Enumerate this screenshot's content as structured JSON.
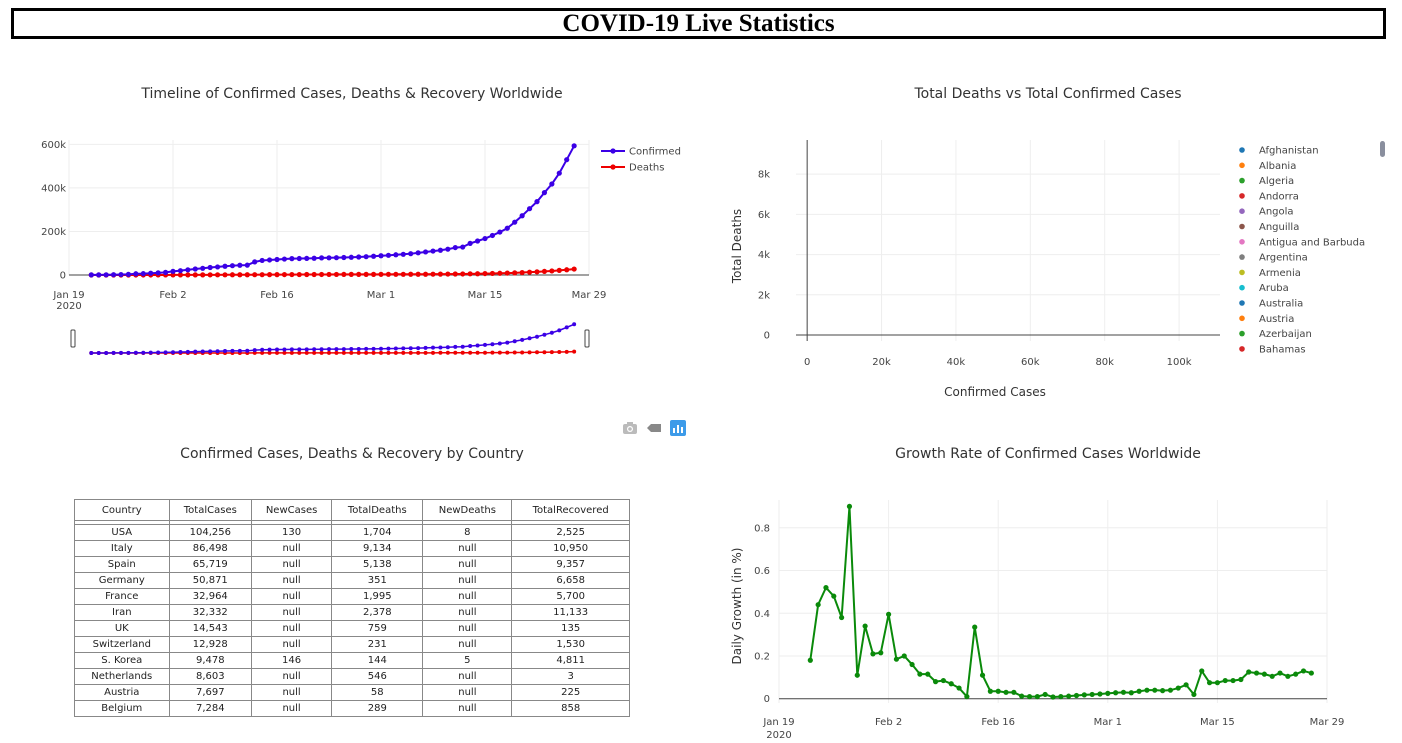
{
  "header": {
    "title": "COVID-19 Live Statistics"
  },
  "timeline": {
    "title": "Timeline of Confirmed Cases, Deaths & Recovery Worldwide",
    "x_ticks": [
      "Jan 19",
      "Feb 2",
      "Feb 16",
      "Mar 1",
      "Mar 15",
      "Mar 29"
    ],
    "x_year": "2020",
    "y_ticks": [
      "0",
      "200k",
      "400k",
      "600k"
    ],
    "legend": [
      "Confirmed",
      "Deaths"
    ]
  },
  "scatter": {
    "title": "Total Deaths vs Total Confirmed Cases",
    "x_ticks": [
      "0",
      "20k",
      "40k",
      "60k",
      "80k",
      "100k"
    ],
    "y_ticks": [
      "0",
      "2k",
      "4k",
      "6k",
      "8k"
    ],
    "xlabel": "Confirmed Cases",
    "ylabel": "Total Deaths"
  },
  "table_section": {
    "title": "Confirmed Cases, Deaths & Recovery by Country"
  },
  "growth": {
    "title": "Growth Rate of Confirmed Cases Worldwide",
    "x_ticks": [
      "Jan 19",
      "Feb 2",
      "Feb 16",
      "Mar 1",
      "Mar 15",
      "Mar 29"
    ],
    "x_year": "2020",
    "y_ticks": [
      "0",
      "0.2",
      "0.4",
      "0.6",
      "0.8"
    ],
    "ylabel": "Daily Growth (in %)"
  },
  "colors": {
    "confirmed": "#3b00e6",
    "deaths": "#ee0000",
    "growth": "#0a8a0a"
  },
  "chart_data": [
    {
      "type": "line",
      "title": "Timeline of Confirmed Cases, Deaths & Recovery Worldwide",
      "x_start": "2020-01-22",
      "x_end": "2020-03-28",
      "ylim": [
        0,
        620000
      ],
      "legend_position": "top-right",
      "grid": true,
      "series": [
        {
          "name": "Confirmed",
          "values": [
            555,
            654,
            941,
            1434,
            2118,
            2927,
            5578,
            6166,
            8234,
            9927,
            12038,
            16787,
            19881,
            23892,
            27635,
            30794,
            34391,
            37120,
            40150,
            42762,
            44802,
            45221,
            60368,
            66885,
            69030,
            71224,
            73258,
            75136,
            75639,
            76197,
            76819,
            78572,
            78958,
            79561,
            80406,
            81388,
            82746,
            84112,
            86011,
            88369,
            90306,
            92840,
            95120,
            97886,
            101801,
            105847,
            109821,
            113590,
            118620,
            125875,
            128352,
            145205,
            156101,
            167454,
            181574,
            197102,
            214821,
            242570,
            272208,
            304507,
            336953,
            378235,
            418045,
            467653,
            529591,
            593291
          ]
        },
        {
          "name": "Deaths",
          "values": [
            17,
            18,
            26,
            42,
            56,
            82,
            131,
            133,
            171,
            213,
            259,
            362,
            426,
            492,
            564,
            634,
            719,
            806,
            906,
            1013,
            1113,
            1118,
            1371,
            1523,
            1666,
            1770,
            1868,
            2007,
            2122,
            2247,
            2251,
            2458,
            2469,
            2629,
            2708,
            2770,
            2814,
            2872,
            2941,
            2996,
            3085,
            3160,
            3254,
            3348,
            3460,
            3558,
            3802,
            3988,
            4262,
            4615,
            4720,
            5404,
            5819,
            6440,
            7126,
            7905,
            8733,
            9867,
            11299,
            13017,
            14601,
            16497,
            18625,
            21181,
            23970,
            27198
          ]
        }
      ]
    },
    {
      "type": "scatter",
      "title": "Total Deaths vs Total Confirmed Cases",
      "xlabel": "Confirmed Cases",
      "ylabel": "Total Deaths",
      "xlim": [
        -3000,
        111000
      ],
      "ylim": [
        -300,
        9700
      ],
      "legend_position": "right",
      "grid": true,
      "legend": [
        {
          "name": "Afghanistan",
          "color": "#1f77b4"
        },
        {
          "name": "Albania",
          "color": "#ff7f0e"
        },
        {
          "name": "Algeria",
          "color": "#2ca02c"
        },
        {
          "name": "Andorra",
          "color": "#d62728"
        },
        {
          "name": "Angola",
          "color": "#9467bd"
        },
        {
          "name": "Anguilla",
          "color": "#8c564b"
        },
        {
          "name": "Antigua and Barbuda",
          "color": "#e377c2"
        },
        {
          "name": "Argentina",
          "color": "#7f7f7f"
        },
        {
          "name": "Armenia",
          "color": "#bcbd22"
        },
        {
          "name": "Aruba",
          "color": "#17becf"
        },
        {
          "name": "Australia",
          "color": "#1f77b4"
        },
        {
          "name": "Austria",
          "color": "#ff7f0e"
        },
        {
          "name": "Azerbaijan",
          "color": "#2ca02c"
        },
        {
          "name": "Bahamas",
          "color": "#d62728"
        }
      ]
    },
    {
      "type": "table",
      "title": "Confirmed Cases, Deaths & Recovery by Country",
      "columns": [
        "Country",
        "TotalCases",
        "NewCases",
        "TotalDeaths",
        "NewDeaths",
        "TotalRecovered"
      ],
      "rows": [
        [
          "USA",
          "104,256",
          "130",
          "1,704",
          "8",
          "2,525"
        ],
        [
          "Italy",
          "86,498",
          "null",
          "9,134",
          "null",
          "10,950"
        ],
        [
          "Spain",
          "65,719",
          "null",
          "5,138",
          "null",
          "9,357"
        ],
        [
          "Germany",
          "50,871",
          "null",
          "351",
          "null",
          "6,658"
        ],
        [
          "France",
          "32,964",
          "null",
          "1,995",
          "null",
          "5,700"
        ],
        [
          "Iran",
          "32,332",
          "null",
          "2,378",
          "null",
          "11,133"
        ],
        [
          "UK",
          "14,543",
          "null",
          "759",
          "null",
          "135"
        ],
        [
          "Switzerland",
          "12,928",
          "null",
          "231",
          "null",
          "1,530"
        ],
        [
          "S. Korea",
          "9,478",
          "146",
          "144",
          "5",
          "4,811"
        ],
        [
          "Netherlands",
          "8,603",
          "null",
          "546",
          "null",
          "3"
        ],
        [
          "Austria",
          "7,697",
          "null",
          "58",
          "null",
          "225"
        ],
        [
          "Belgium",
          "7,284",
          "null",
          "289",
          "null",
          "858"
        ]
      ]
    },
    {
      "type": "line",
      "title": "Growth Rate of Confirmed Cases Worldwide",
      "ylabel": "Daily Growth (in %)",
      "x_start": "2020-01-23",
      "x_end": "2020-03-28",
      "ylim": [
        -0.02,
        0.93
      ],
      "grid": true,
      "values": [
        0.18,
        0.44,
        0.52,
        0.48,
        0.38,
        0.9,
        0.11,
        0.34,
        0.21,
        0.215,
        0.395,
        0.185,
        0.2,
        0.16,
        0.115,
        0.115,
        0.08,
        0.085,
        0.07,
        0.05,
        0.01,
        0.335,
        0.11,
        0.035,
        0.035,
        0.03,
        0.03,
        0.012,
        0.01,
        0.01,
        0.02,
        0.008,
        0.01,
        0.012,
        0.015,
        0.018,
        0.02,
        0.022,
        0.025,
        0.028,
        0.03,
        0.028,
        0.035,
        0.04,
        0.04,
        0.038,
        0.04,
        0.05,
        0.065,
        0.02,
        0.13,
        0.075,
        0.075,
        0.085,
        0.085,
        0.09,
        0.125,
        0.12,
        0.115,
        0.105,
        0.12,
        0.105,
        0.115,
        0.13,
        0.12
      ]
    }
  ]
}
